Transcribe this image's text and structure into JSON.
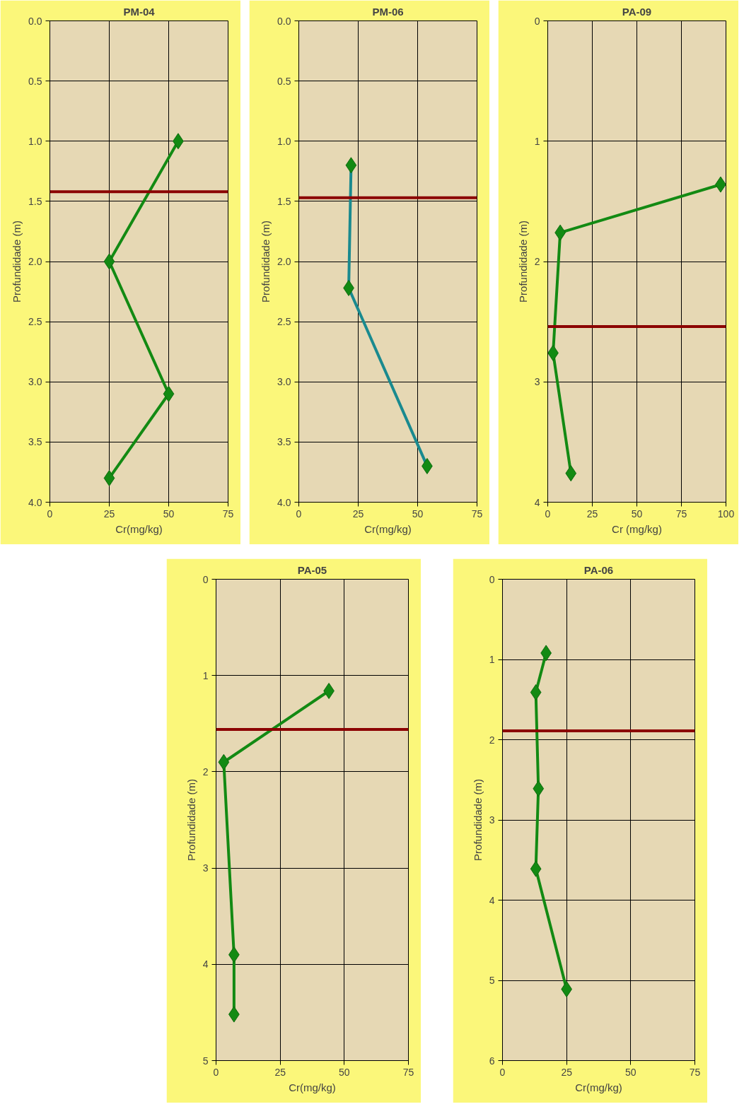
{
  "chart_data": [
    {
      "type": "line",
      "title": "PM-04",
      "xlabel": "Cr(mg/kg)",
      "ylabel": "Profundidade (m)",
      "xlim": [
        0,
        75
      ],
      "xticks": [
        0,
        25,
        50,
        75
      ],
      "ylim": [
        4.0,
        0.0
      ],
      "yticks": [
        {
          "value": 0,
          "label": "0.0"
        },
        {
          "value": 0.5,
          "label": "0.5"
        },
        {
          "value": 1,
          "label": "1.0"
        },
        {
          "value": 1.5,
          "label": "1.5"
        },
        {
          "value": 2,
          "label": "2.0"
        },
        {
          "value": 2.5,
          "label": "2.5"
        },
        {
          "value": 3,
          "label": "3.0"
        },
        {
          "value": 3.5,
          "label": "3.5"
        },
        {
          "value": 4,
          "label": "4.0"
        }
      ],
      "grid": true,
      "marker": "diamond",
      "series": [
        {
          "color": "#138a13",
          "x": [
            54,
            25,
            50,
            25
          ],
          "values": [
            1.0,
            2.0,
            3.1,
            3.8
          ]
        }
      ],
      "ref_lines": [
        {
          "axis": "y",
          "value": 1.42,
          "color": "#8b0000"
        }
      ]
    },
    {
      "type": "line",
      "title": "PM-06",
      "xlabel": "Cr(mg/kg)",
      "ylabel": "Profundidade (m)",
      "xlim": [
        0,
        75
      ],
      "xticks": [
        0,
        25,
        50,
        75
      ],
      "ylim": [
        4.0,
        0.0
      ],
      "yticks": [
        {
          "value": 0,
          "label": "0.0"
        },
        {
          "value": 0.5,
          "label": "0.5"
        },
        {
          "value": 1,
          "label": "1.0"
        },
        {
          "value": 1.5,
          "label": "1.5"
        },
        {
          "value": 2,
          "label": "2.0"
        },
        {
          "value": 2.5,
          "label": "2.5"
        },
        {
          "value": 3,
          "label": "3.0"
        },
        {
          "value": 3.5,
          "label": "3.5"
        },
        {
          "value": 4,
          "label": "4.0"
        }
      ],
      "grid": true,
      "marker": "diamond",
      "series": [
        {
          "color": "#1a8a8f",
          "x": [
            22,
            21,
            54
          ],
          "values": [
            1.2,
            2.22,
            3.7
          ]
        }
      ],
      "ref_lines": [
        {
          "axis": "y",
          "value": 1.47,
          "color": "#8b0000"
        }
      ]
    },
    {
      "type": "line",
      "title": "PA-09",
      "xlabel": "Cr (mg/kg)",
      "ylabel": "Profundidade (m)",
      "xlim": [
        0,
        100
      ],
      "xticks": [
        0,
        25,
        50,
        75,
        100
      ],
      "ylim": [
        4,
        0
      ],
      "yticks": [
        0,
        1,
        2,
        3,
        4
      ],
      "grid": true,
      "marker": "diamond",
      "series": [
        {
          "color": "#138a13",
          "x": [
            97,
            7,
            3,
            13
          ],
          "values": [
            1.36,
            1.76,
            2.76,
            3.76
          ]
        }
      ],
      "ref_lines": [
        {
          "axis": "y",
          "value": 2.54,
          "color": "#8b0000"
        }
      ]
    },
    {
      "type": "line",
      "title": "PA-05",
      "xlabel": "Cr(mg/kg)",
      "ylabel": "Profundidade (m)",
      "xlim": [
        0,
        75
      ],
      "xticks": [
        0,
        25,
        50,
        75
      ],
      "ylim": [
        5,
        0
      ],
      "yticks": [
        0,
        1,
        2,
        3,
        4,
        5
      ],
      "grid": true,
      "marker": "diamond",
      "series": [
        {
          "color": "#138a13",
          "x": [
            44,
            3,
            7,
            7
          ],
          "values": [
            1.16,
            1.9,
            3.9,
            4.52
          ]
        }
      ],
      "ref_lines": [
        {
          "axis": "y",
          "value": 1.56,
          "color": "#8b0000"
        }
      ]
    },
    {
      "type": "line",
      "title": "PA-06",
      "xlabel": "Cr(mg/kg)",
      "ylabel": "Profundidade (m)",
      "xlim": [
        0,
        75
      ],
      "xticks": [
        0,
        25,
        50,
        75
      ],
      "ylim": [
        6,
        0
      ],
      "yticks": [
        0,
        1,
        2,
        3,
        4,
        5,
        6
      ],
      "grid": true,
      "marker": "diamond",
      "series": [
        {
          "color": "#138a13",
          "x": [
            17,
            13,
            14,
            13,
            25
          ],
          "values": [
            0.92,
            1.41,
            2.61,
            3.61,
            5.11
          ]
        }
      ],
      "ref_lines": [
        {
          "axis": "y",
          "value": 1.89,
          "color": "#8b0000"
        }
      ]
    }
  ]
}
